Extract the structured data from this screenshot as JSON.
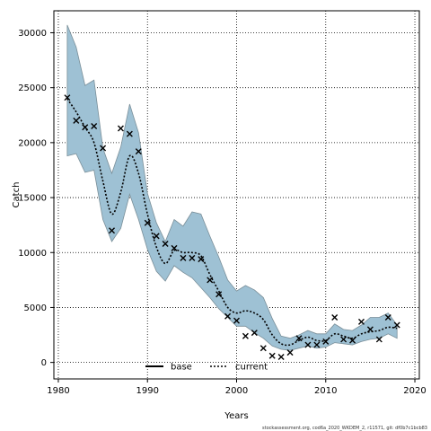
{
  "chart_data": {
    "type": "line",
    "title": "",
    "xlabel": "Years",
    "ylabel": "Catch",
    "xlim": [
      1979.5,
      2020.5
    ],
    "ylim": [
      -1500,
      32000
    ],
    "x_ticks": [
      1980,
      1990,
      2000,
      2010,
      2020
    ],
    "y_ticks": [
      0,
      5000,
      10000,
      15000,
      20000,
      25000,
      30000
    ],
    "grid": true,
    "legend_position": "bottom-center",
    "colors": {
      "band": "#9ec1d4",
      "band_edge": "#7a8f99",
      "line": "#000000",
      "points": "#000000",
      "grid": "#000000"
    },
    "legend": [
      {
        "label": "base",
        "style": "solid"
      },
      {
        "label": "current",
        "style": "dotted"
      }
    ],
    "series": [
      {
        "name": "current",
        "style": "dotted",
        "x": [
          1981,
          1982,
          1983,
          1984,
          1985,
          1986,
          1987,
          1988,
          1989,
          1990,
          1991,
          1992,
          1993,
          1994,
          1995,
          1996,
          1997,
          1998,
          1999,
          2000,
          2001,
          2002,
          2003,
          2004,
          2005,
          2006,
          2007,
          2008,
          2009,
          2010,
          2011,
          2012,
          2013,
          2014,
          2015,
          2016,
          2017,
          2018
        ],
        "y": [
          24000,
          22800,
          21400,
          20000,
          16500,
          13500,
          15500,
          18800,
          17200,
          13500,
          10500,
          9000,
          10200,
          10000,
          10000,
          9700,
          8000,
          6500,
          5000,
          4500,
          4700,
          4500,
          3900,
          2500,
          1700,
          1600,
          2000,
          2300,
          2000,
          2000,
          2600,
          2400,
          2200,
          2600,
          2800,
          2900,
          3200,
          3100
        ]
      },
      {
        "name": "current_lower",
        "x": [
          1981,
          1982,
          1983,
          1984,
          1985,
          1986,
          1987,
          1988,
          1989,
          1990,
          1991,
          1992,
          1993,
          1994,
          1995,
          1996,
          1997,
          1998,
          1999,
          2000,
          2001,
          2002,
          2003,
          2004,
          2005,
          2006,
          2007,
          2008,
          2009,
          2010,
          2011,
          2012,
          2013,
          2014,
          2015,
          2016,
          2017,
          2018
        ],
        "y": [
          18800,
          19000,
          17300,
          17500,
          13000,
          11000,
          12200,
          15300,
          13000,
          10300,
          8300,
          7400,
          8800,
          8200,
          7700,
          6800,
          5900,
          4900,
          4100,
          3300,
          3300,
          2700,
          2200,
          1500,
          1200,
          1100,
          1300,
          1500,
          1300,
          1400,
          1800,
          1700,
          1600,
          1900,
          2100,
          2200,
          2600,
          2200
        ]
      },
      {
        "name": "current_upper",
        "x": [
          1981,
          1982,
          1983,
          1984,
          1985,
          1986,
          1987,
          1988,
          1989,
          1990,
          1991,
          1992,
          1993,
          1994,
          1995,
          1996,
          1997,
          1998,
          1999,
          2000,
          2001,
          2002,
          2003,
          2004,
          2005,
          2006,
          2007,
          2008,
          2009,
          2010,
          2011,
          2012,
          2013,
          2014,
          2015,
          2016,
          2017,
          2018
        ],
        "y": [
          30700,
          28700,
          25200,
          25700,
          19500,
          17200,
          19600,
          23500,
          20900,
          15400,
          12700,
          11000,
          13000,
          12400,
          13700,
          13500,
          11500,
          9600,
          7500,
          6500,
          7000,
          6600,
          5900,
          4000,
          2400,
          2200,
          2500,
          2900,
          2600,
          2600,
          3500,
          3000,
          2900,
          3400,
          4100,
          4100,
          4500,
          3400
        ]
      },
      {
        "name": "observed",
        "style": "points",
        "x": [
          1981,
          1982,
          1983,
          1984,
          1985,
          1986,
          1987,
          1988,
          1989,
          1990,
          1991,
          1992,
          1993,
          1994,
          1995,
          1996,
          1997,
          1998,
          1999,
          2000,
          2001,
          2002,
          2003,
          2004,
          2005,
          2006,
          2007,
          2008,
          2009,
          2010,
          2011,
          2012,
          2013,
          2014,
          2015,
          2016,
          2017,
          2018
        ],
        "y": [
          24100,
          22000,
          21400,
          21500,
          19500,
          12000,
          21300,
          20800,
          19200,
          12700,
          11500,
          10800,
          10400,
          9500,
          9500,
          9400,
          7500,
          6200,
          4200,
          3800,
          2400,
          2700,
          1300,
          600,
          500,
          900,
          2200,
          1600,
          1600,
          1900,
          4100,
          2100,
          2000,
          3700,
          3000,
          2100,
          4100,
          3400
        ]
      }
    ]
  },
  "footer": {
    "text": "stockassessment.org, cod6a_2020_WKDEM_2, r11571, git: df0b7c1bcb83"
  }
}
